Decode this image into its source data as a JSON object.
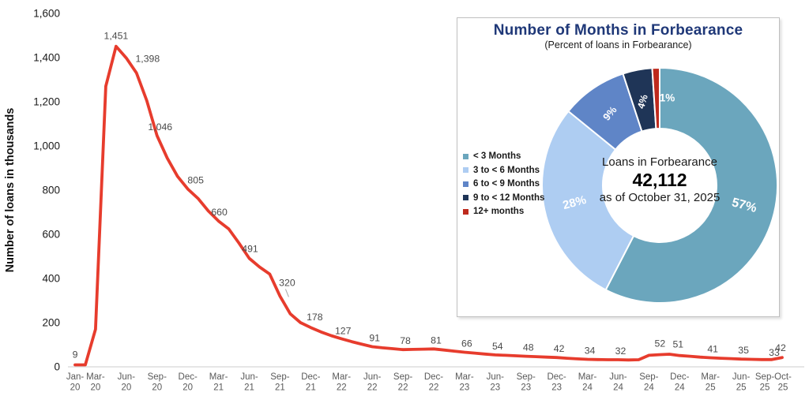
{
  "page": {
    "background": "#ffffff"
  },
  "chart_data": [
    {
      "id": "forbearance-trend",
      "type": "line",
      "title": "",
      "xlabel": "",
      "ylabel": "Number of loans in thousands",
      "ylim": [
        0,
        1600
      ],
      "ytick_step": 200,
      "ytick_labels": [
        "0",
        "200",
        "400",
        "600",
        "800",
        "1,000",
        "1,200",
        "1,400",
        "1,600"
      ],
      "grid": false,
      "line_color": "#E73C2D",
      "axis_line_color": "#D6D6D6",
      "x_tick_label_color": "#595959",
      "y_tick_label_color": "#1a1a1a",
      "data_label_color": "#4a4a4a",
      "x_ticks": [
        {
          "label": "Jan-20",
          "m": 0
        },
        {
          "label": "Mar-20",
          "m": 2
        },
        {
          "label": "Jun-20",
          "m": 5
        },
        {
          "label": "Sep-20",
          "m": 8
        },
        {
          "label": "Dec-20",
          "m": 11
        },
        {
          "label": "Mar-21",
          "m": 14
        },
        {
          "label": "Jun-21",
          "m": 17
        },
        {
          "label": "Sep-21",
          "m": 20
        },
        {
          "label": "Dec-21",
          "m": 23
        },
        {
          "label": "Mar-22",
          "m": 26
        },
        {
          "label": "Jun-22",
          "m": 29
        },
        {
          "label": "Sep-22",
          "m": 32
        },
        {
          "label": "Dec-22",
          "m": 35
        },
        {
          "label": "Mar-23",
          "m": 38
        },
        {
          "label": "Jun-23",
          "m": 41
        },
        {
          "label": "Sep-23",
          "m": 44
        },
        {
          "label": "Dec-23",
          "m": 47
        },
        {
          "label": "Mar-24",
          "m": 50
        },
        {
          "label": "Jun-24",
          "m": 53
        },
        {
          "label": "Sep-24",
          "m": 56
        },
        {
          "label": "Dec-24",
          "m": 59
        },
        {
          "label": "Mar-25",
          "m": 62
        },
        {
          "label": "Jun-25",
          "m": 65
        },
        {
          "label": "Sep-25",
          "m": 68
        },
        {
          "label": "Oct-25",
          "m": 69
        }
      ],
      "labeled_points": [
        {
          "month": "Jan-20",
          "m": 0,
          "value": 9,
          "label": "9"
        },
        {
          "month": "May-20",
          "m": 4,
          "value": 1451,
          "label": "1,451"
        },
        {
          "month": "Jun-20",
          "m": 5,
          "value": 1398,
          "label": "1,398"
        },
        {
          "month": "Sep-20",
          "m": 8,
          "value": 1046,
          "label": "1,046"
        },
        {
          "month": "Dec-20",
          "m": 11,
          "value": 805,
          "label": "805"
        },
        {
          "month": "Mar-21",
          "m": 14,
          "value": 660,
          "label": "660"
        },
        {
          "month": "Jun-21",
          "m": 17,
          "value": 491,
          "label": "491"
        },
        {
          "month": "Sep-21",
          "m": 20,
          "value": 320,
          "label": "320"
        },
        {
          "month": "Dec-21",
          "m": 23,
          "value": 178,
          "label": "178"
        },
        {
          "month": "Mar-22",
          "m": 26,
          "value": 127,
          "label": "127"
        },
        {
          "month": "Jun-22",
          "m": 29,
          "value": 91,
          "label": "91"
        },
        {
          "month": "Sep-22",
          "m": 32,
          "value": 78,
          "label": "78"
        },
        {
          "month": "Dec-22",
          "m": 35,
          "value": 81,
          "label": "81"
        },
        {
          "month": "Mar-23",
          "m": 38,
          "value": 66,
          "label": "66"
        },
        {
          "month": "Jun-23",
          "m": 41,
          "value": 54,
          "label": "54"
        },
        {
          "month": "Sep-23",
          "m": 44,
          "value": 48,
          "label": "48"
        },
        {
          "month": "Dec-23",
          "m": 47,
          "value": 42,
          "label": "42"
        },
        {
          "month": "Mar-24",
          "m": 50,
          "value": 34,
          "label": "34"
        },
        {
          "month": "Jun-24",
          "m": 53,
          "value": 32,
          "label": "32"
        },
        {
          "month": "Sep-24",
          "m": 56,
          "value": 52,
          "label": "52"
        },
        {
          "month": "Dec-24",
          "m": 59,
          "value": 51,
          "label": "51"
        },
        {
          "month": "Mar-25",
          "m": 62,
          "value": 41,
          "label": "41"
        },
        {
          "month": "Jun-25",
          "m": 65,
          "value": 35,
          "label": "35"
        },
        {
          "month": "Sep-25",
          "m": 68,
          "value": 33,
          "label": "33"
        },
        {
          "month": "Oct-25",
          "m": 69,
          "value": 42,
          "label": "42"
        }
      ],
      "estimated_monthly_path": [
        [
          0,
          9
        ],
        [
          1,
          9
        ],
        [
          2,
          170
        ],
        [
          3,
          1270
        ],
        [
          4,
          1451
        ],
        [
          5,
          1398
        ],
        [
          6,
          1330
        ],
        [
          7,
          1205
        ],
        [
          8,
          1046
        ],
        [
          9,
          945
        ],
        [
          10,
          862
        ],
        [
          11,
          805
        ],
        [
          12,
          762
        ],
        [
          13,
          706
        ],
        [
          14,
          660
        ],
        [
          15,
          624
        ],
        [
          16,
          560
        ],
        [
          17,
          491
        ],
        [
          18,
          452
        ],
        [
          19,
          420
        ],
        [
          20,
          320
        ],
        [
          21,
          240
        ],
        [
          22,
          200
        ],
        [
          23,
          178
        ],
        [
          24,
          158
        ],
        [
          25,
          141
        ],
        [
          26,
          127
        ],
        [
          27,
          114
        ],
        [
          28,
          102
        ],
        [
          29,
          91
        ],
        [
          30,
          86
        ],
        [
          31,
          82
        ],
        [
          32,
          78
        ],
        [
          33,
          79
        ],
        [
          34,
          80
        ],
        [
          35,
          81
        ],
        [
          36,
          76
        ],
        [
          37,
          71
        ],
        [
          38,
          66
        ],
        [
          39,
          62
        ],
        [
          40,
          58
        ],
        [
          41,
          54
        ],
        [
          42,
          52
        ],
        [
          43,
          50
        ],
        [
          44,
          48
        ],
        [
          45,
          46
        ],
        [
          46,
          44
        ],
        [
          47,
          42
        ],
        [
          48,
          39
        ],
        [
          49,
          36
        ],
        [
          50,
          34
        ],
        [
          51,
          33
        ],
        [
          52,
          32
        ],
        [
          53,
          32
        ],
        [
          54,
          31
        ],
        [
          55,
          32
        ],
        [
          56,
          52
        ],
        [
          57,
          55
        ],
        [
          58,
          57
        ],
        [
          59,
          51
        ],
        [
          60,
          48
        ],
        [
          61,
          44
        ],
        [
          62,
          41
        ],
        [
          63,
          39
        ],
        [
          64,
          37
        ],
        [
          65,
          35
        ],
        [
          66,
          34
        ],
        [
          67,
          33
        ],
        [
          68,
          33
        ],
        [
          69,
          42
        ]
      ]
    },
    {
      "id": "months-in-forbearance",
      "type": "pie",
      "title": "Number of Months in Forbearance",
      "subtitle": "(Percent of loans in Forbearance)",
      "title_color": "#1F3878",
      "legend_position": "left",
      "center_text": {
        "line1": "Loans in Forbearance",
        "value": "42,112",
        "line2": "as of October 31, 2025"
      },
      "slices": [
        {
          "label": "< 3 Months",
          "value": 57,
          "display": "57%",
          "color": "#6BA6BD"
        },
        {
          "label": "3 to < 6 Months",
          "value": 28,
          "display": "28%",
          "color": "#AECDF2"
        },
        {
          "label": "6 to < 9 Months",
          "value": 9,
          "display": "9%",
          "color": "#5F85C7"
        },
        {
          "label": "9 to < 12 Months",
          "value": 4,
          "display": "4%",
          "color": "#1F3557"
        },
        {
          "label": "12+ months",
          "value": 1,
          "display": "1%",
          "color": "#BE2A1D"
        }
      ]
    }
  ]
}
